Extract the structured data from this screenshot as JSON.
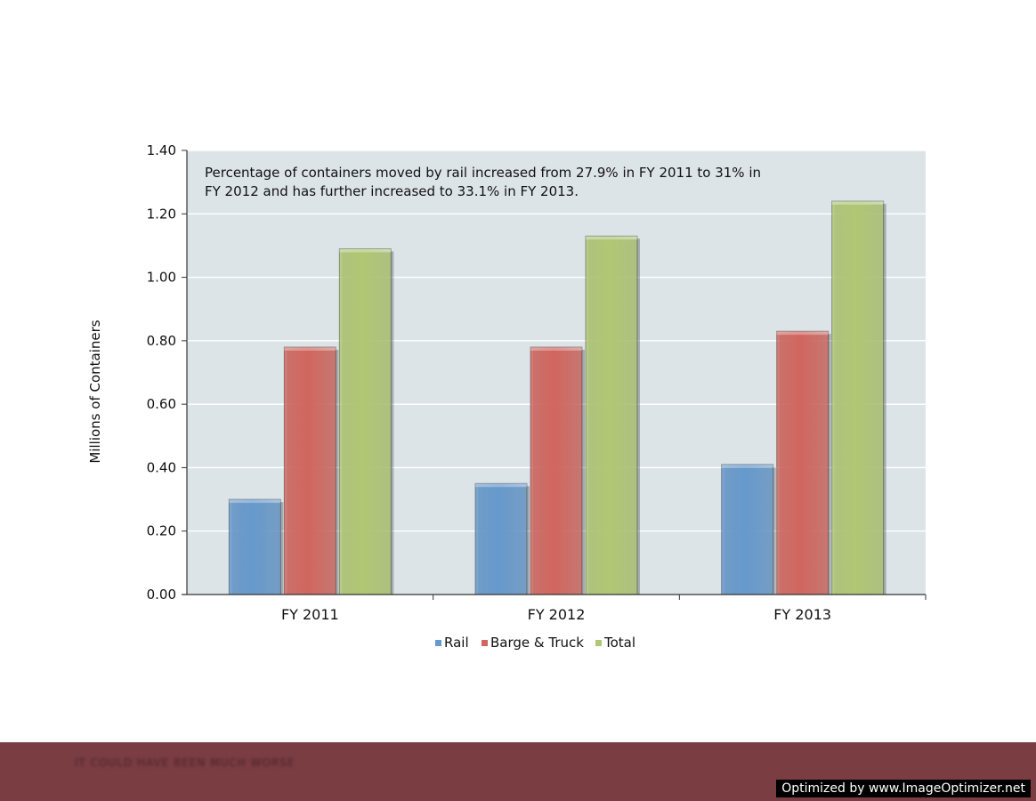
{
  "chart_data": {
    "type": "bar",
    "categories": [
      "FY 2011",
      "FY 2012",
      "FY 2013"
    ],
    "series": [
      {
        "name": "Rail",
        "values": [
          0.3,
          0.35,
          0.41
        ],
        "color": "#6699cc"
      },
      {
        "name": "Barge & Truck",
        "values": [
          0.78,
          0.78,
          0.83
        ],
        "color": "#d1665e"
      },
      {
        "name": "Total",
        "values": [
          1.09,
          1.13,
          1.24
        ],
        "color": "#b0c773"
      }
    ],
    "ylabel": "Millions of Containers",
    "ylim": [
      0,
      1.4
    ],
    "yticks": [
      "0.00",
      "0.20",
      "0.40",
      "0.60",
      "0.80",
      "1.00",
      "1.20",
      "1.40"
    ],
    "grid": true,
    "legend_position": "bottom",
    "annotation": [
      "Percentage of containers moved by rail increased from 27.9%  in FY 2011 to 31% in",
      "FY 2012 and has further increased to 33.1% in FY 2013."
    ],
    "plot_background": "#dde4e8"
  },
  "footer": {
    "blurred_text": "IT COULD HAVE BEEN MUCH WORSE",
    "band_color": "#7a3d42"
  },
  "watermark": "Optimized by www.ImageOptimizer.net"
}
